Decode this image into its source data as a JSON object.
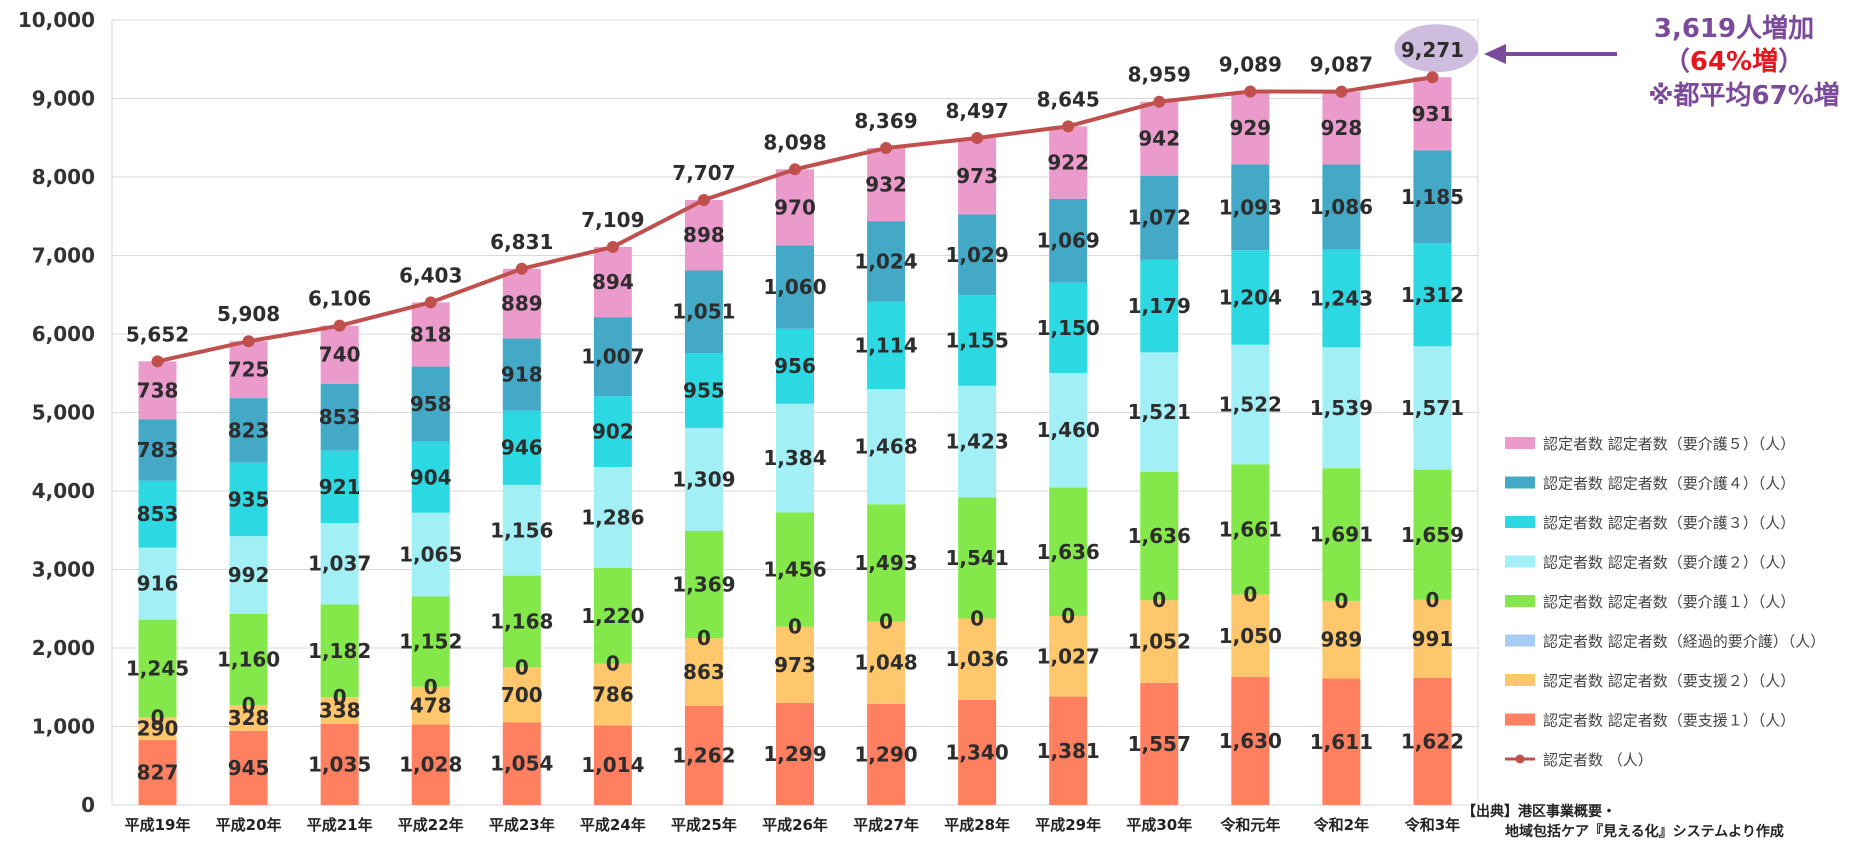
{
  "chart_data": {
    "type": "bar",
    "stacked": true,
    "categories": [
      "平成19年",
      "平成20年",
      "平成21年",
      "平成22年",
      "平成23年",
      "平成24年",
      "平成25年",
      "平成26年",
      "平成27年",
      "平成28年",
      "平成29年",
      "平成30年",
      "令和元年",
      "令和2年",
      "令和3年"
    ],
    "ylim": [
      0,
      10000
    ],
    "yticks": [
      0,
      1000,
      2000,
      3000,
      4000,
      5000,
      6000,
      7000,
      8000,
      9000,
      10000
    ],
    "ytick_labels": [
      "0",
      "1,000",
      "2,000",
      "3,000",
      "4,000",
      "5,000",
      "6,000",
      "7,000",
      "8,000",
      "9,000",
      "10,000"
    ],
    "grid": true,
    "legend_position": "right",
    "series": [
      {
        "name": "認定者数 認定者数（要支援１）（人）",
        "color": "#FF7F61",
        "values": [
          827,
          945,
          1035,
          1028,
          1054,
          1014,
          1262,
          1299,
          1290,
          1340,
          1381,
          1557,
          1630,
          1611,
          1622
        ],
        "labels": [
          "827",
          "945",
          "1,035",
          "1,028",
          "1,054",
          "1,014",
          "1,262",
          "1,299",
          "1,290",
          "1,340",
          "1,381",
          "1,557",
          "1,630",
          "1,611",
          "1,622"
        ]
      },
      {
        "name": "認定者数 認定者数（要支援２）（人）",
        "color": "#FFC76B",
        "values": [
          290,
          328,
          338,
          478,
          700,
          786,
          863,
          973,
          1048,
          1036,
          1027,
          1052,
          1050,
          989,
          991
        ],
        "labels": [
          "290",
          "328",
          "338",
          "478",
          "700",
          "786",
          "863",
          "973",
          "1,048",
          "1,036",
          "1,027",
          "1,052",
          "1,050",
          "989",
          "991"
        ]
      },
      {
        "name": "認定者数 認定者数（経過的要介護）（人）",
        "color": "#A8CCF4",
        "values": [
          0,
          0,
          0,
          0,
          0,
          0,
          0,
          0,
          0,
          0,
          0,
          0,
          0,
          0,
          0
        ],
        "labels": [
          "0",
          "0",
          "0",
          "0",
          "0",
          "0",
          "0",
          "0",
          "0",
          "0",
          "0",
          "0",
          "0",
          "0",
          "0"
        ]
      },
      {
        "name": "認定者数 認定者数（要介護１）（人）",
        "color": "#85E84A",
        "values": [
          1245,
          1160,
          1182,
          1152,
          1168,
          1220,
          1369,
          1456,
          1493,
          1541,
          1636,
          1636,
          1661,
          1691,
          1659
        ],
        "labels": [
          "1,245",
          "1,160",
          "1,182",
          "1,152",
          "1,168",
          "1,220",
          "1,369",
          "1,456",
          "1,493",
          "1,541",
          "1,636",
          "1,636",
          "1,661",
          "1,691",
          "1,659"
        ]
      },
      {
        "name": "認定者数 認定者数（要介護２）（人）",
        "color": "#A2F0F6",
        "values": [
          916,
          992,
          1037,
          1065,
          1156,
          1286,
          1309,
          1384,
          1468,
          1423,
          1460,
          1521,
          1522,
          1539,
          1571
        ],
        "labels": [
          "916",
          "992",
          "1,037",
          "1,065",
          "1,156",
          "1,286",
          "1,309",
          "1,384",
          "1,468",
          "1,423",
          "1,460",
          "1,521",
          "1,522",
          "1,539",
          "1,571"
        ]
      },
      {
        "name": "認定者数 認定者数（要介護３）（人）",
        "color": "#2CD9E2",
        "values": [
          853,
          935,
          921,
          904,
          946,
          902,
          955,
          956,
          1114,
          1155,
          1150,
          1179,
          1204,
          1243,
          1312
        ],
        "labels": [
          "853",
          "935",
          "921",
          "904",
          "946",
          "902",
          "955",
          "956",
          "1,114",
          "1,155",
          "1,150",
          "1,179",
          "1,204",
          "1,243",
          "1,312"
        ]
      },
      {
        "name": "認定者数 認定者数（要介護４）（人）",
        "color": "#43A9C6",
        "values": [
          783,
          823,
          853,
          958,
          918,
          1007,
          1051,
          1060,
          1024,
          1029,
          1069,
          1072,
          1093,
          1086,
          1185
        ],
        "labels": [
          "783",
          "823",
          "853",
          "958",
          "918",
          "1,007",
          "1,051",
          "1,060",
          "1,024",
          "1,029",
          "1,069",
          "1,072",
          "1,093",
          "1,086",
          "1,185"
        ]
      },
      {
        "name": "認定者数 認定者数（要介護５）（人）",
        "color": "#EB9BCB",
        "values": [
          738,
          725,
          740,
          818,
          889,
          894,
          898,
          970,
          932,
          973,
          922,
          942,
          929,
          928,
          931
        ],
        "labels": [
          "738",
          "725",
          "740",
          "818",
          "889",
          "894",
          "898",
          "970",
          "932",
          "973",
          "922",
          "942",
          "929",
          "928",
          "931"
        ]
      }
    ],
    "line": {
      "name": "認定者数 （人）",
      "color": "#C0504D",
      "values": [
        5652,
        5908,
        6106,
        6403,
        6831,
        7109,
        7707,
        8098,
        8369,
        8497,
        8645,
        8959,
        9089,
        9087,
        9271
      ],
      "labels": [
        "5,652",
        "5,908",
        "6,106",
        "6,403",
        "6,831",
        "7,109",
        "7,707",
        "8,098",
        "8,369",
        "8,497",
        "8,645",
        "8,959",
        "9,089",
        "9,087",
        "9,271"
      ]
    },
    "legend_order": [
      7,
      6,
      5,
      4,
      3,
      2,
      1,
      0
    ]
  },
  "annotation": {
    "line1": "3,619人増加",
    "line2_open": "（",
    "line2_red": "64%増",
    "line2_close": "）",
    "line3": "※都平均67%増"
  },
  "source": {
    "line1": "【出典】港区事業概要・",
    "line2": "地域包括ケア『見える化』システムより作成"
  }
}
